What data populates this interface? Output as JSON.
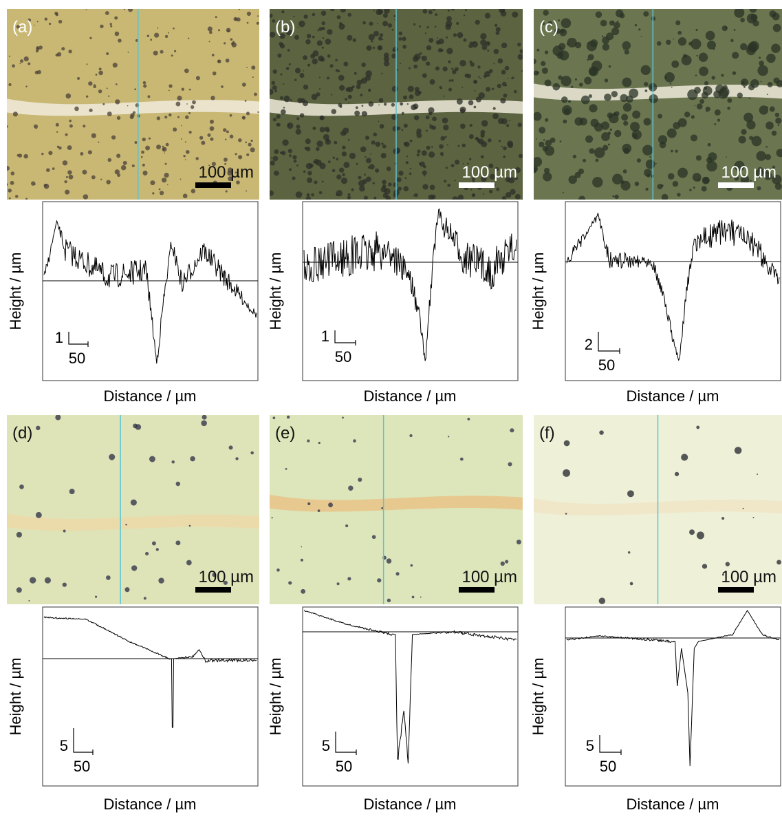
{
  "panels": [
    {
      "label": "(a)",
      "scale_bar": "100 µm",
      "y_label": "Height / µm",
      "x_label": "Distance / µm",
      "scale_y": "1",
      "scale_x": "50"
    },
    {
      "label": "(b)",
      "scale_bar": "100 µm",
      "y_label": "Height / µm",
      "x_label": "Distance / µm",
      "scale_y": "1",
      "scale_x": "50"
    },
    {
      "label": "(c)",
      "scale_bar": "100 µm",
      "y_label": "Height / µm",
      "x_label": "Distance / µm",
      "scale_y": "2",
      "scale_x": "50"
    },
    {
      "label": "(d)",
      "scale_bar": "100 µm",
      "y_label": "Height / µm",
      "x_label": "Distance / µm",
      "scale_y": "5",
      "scale_x": "50"
    },
    {
      "label": "(e)",
      "scale_bar": "100 µm",
      "y_label": "Height / µm",
      "x_label": "Distance / µm",
      "scale_y": "5",
      "scale_x": "50"
    },
    {
      "label": "(f)",
      "scale_bar": "100 µm",
      "y_label": "Height / µm",
      "x_label": "Distance / µm",
      "scale_y": "5",
      "scale_x": "50"
    }
  ]
}
